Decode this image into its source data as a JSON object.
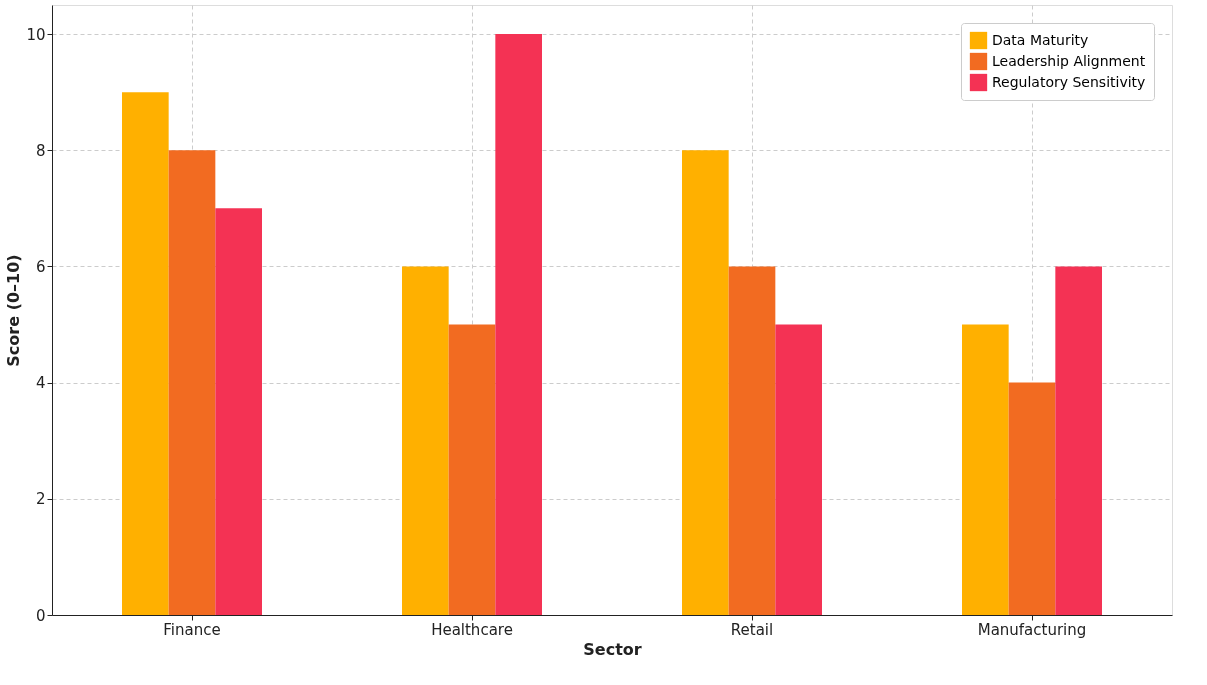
{
  "chart_data": {
    "type": "bar",
    "xlabel": "Sector",
    "ylabel": "Score (0–10)",
    "categories": [
      "Finance",
      "Healthcare",
      "Retail",
      "Manufacturing"
    ],
    "series": [
      {
        "name": "Data Maturity",
        "color": "#ffb000",
        "values": [
          9,
          6,
          8,
          5
        ]
      },
      {
        "name": "Leadership Alignment",
        "color": "#f26b21",
        "values": [
          8,
          5,
          6,
          4
        ]
      },
      {
        "name": "Regulatory Sensitivity",
        "color": "#f43254",
        "values": [
          7,
          10,
          5,
          6
        ]
      }
    ],
    "ylim": [
      0,
      10.5
    ],
    "yticks": [
      0,
      2,
      4,
      6,
      8,
      10
    ],
    "grid": true,
    "legend": "top right"
  }
}
